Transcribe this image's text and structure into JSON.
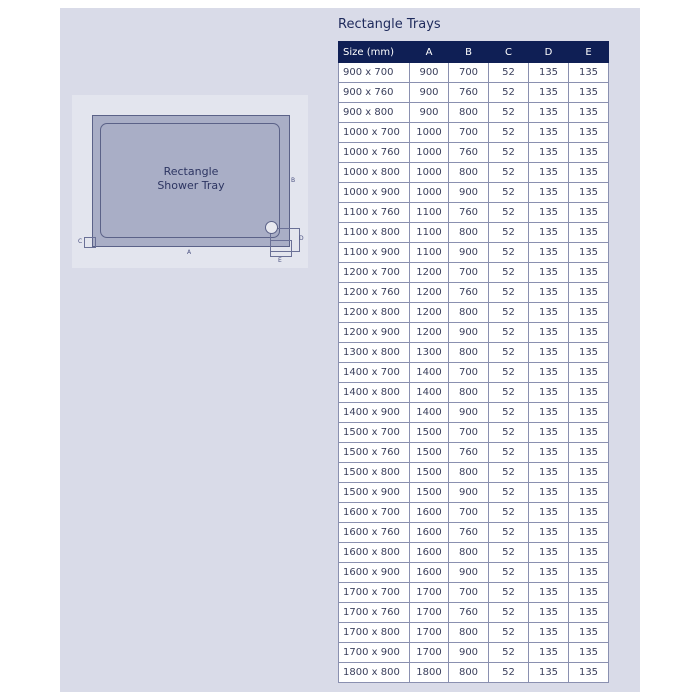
{
  "diagram": {
    "label_line1": "Rectangle",
    "label_line2": "Shower Tray",
    "dim_a": "A",
    "dim_b": "B",
    "dim_c": "C",
    "dim_d": "D",
    "dim_e": "E"
  },
  "table": {
    "title": "Rectangle Trays",
    "headers": [
      "Size (mm)",
      "A",
      "B",
      "C",
      "D",
      "E"
    ],
    "rows": [
      [
        "900 x 700",
        "900",
        "700",
        "52",
        "135",
        "135"
      ],
      [
        "900 x 760",
        "900",
        "760",
        "52",
        "135",
        "135"
      ],
      [
        "900 x 800",
        "900",
        "800",
        "52",
        "135",
        "135"
      ],
      [
        "1000 x 700",
        "1000",
        "700",
        "52",
        "135",
        "135"
      ],
      [
        "1000 x 760",
        "1000",
        "760",
        "52",
        "135",
        "135"
      ],
      [
        "1000 x 800",
        "1000",
        "800",
        "52",
        "135",
        "135"
      ],
      [
        "1000 x 900",
        "1000",
        "900",
        "52",
        "135",
        "135"
      ],
      [
        "1100 x 760",
        "1100",
        "760",
        "52",
        "135",
        "135"
      ],
      [
        "1100 x 800",
        "1100",
        "800",
        "52",
        "135",
        "135"
      ],
      [
        "1100 x 900",
        "1100",
        "900",
        "52",
        "135",
        "135"
      ],
      [
        "1200 x 700",
        "1200",
        "700",
        "52",
        "135",
        "135"
      ],
      [
        "1200 x 760",
        "1200",
        "760",
        "52",
        "135",
        "135"
      ],
      [
        "1200 x 800",
        "1200",
        "800",
        "52",
        "135",
        "135"
      ],
      [
        "1200 x 900",
        "1200",
        "900",
        "52",
        "135",
        "135"
      ],
      [
        "1300 x 800",
        "1300",
        "800",
        "52",
        "135",
        "135"
      ],
      [
        "1400 x 700",
        "1400",
        "700",
        "52",
        "135",
        "135"
      ],
      [
        "1400 x 800",
        "1400",
        "800",
        "52",
        "135",
        "135"
      ],
      [
        "1400 x 900",
        "1400",
        "900",
        "52",
        "135",
        "135"
      ],
      [
        "1500 x 700",
        "1500",
        "700",
        "52",
        "135",
        "135"
      ],
      [
        "1500 x 760",
        "1500",
        "760",
        "52",
        "135",
        "135"
      ],
      [
        "1500 x 800",
        "1500",
        "800",
        "52",
        "135",
        "135"
      ],
      [
        "1500 x 900",
        "1500",
        "900",
        "52",
        "135",
        "135"
      ],
      [
        "1600 x 700",
        "1600",
        "700",
        "52",
        "135",
        "135"
      ],
      [
        "1600 x 760",
        "1600",
        "760",
        "52",
        "135",
        "135"
      ],
      [
        "1600 x 800",
        "1600",
        "800",
        "52",
        "135",
        "135"
      ],
      [
        "1600 x 900",
        "1600",
        "900",
        "52",
        "135",
        "135"
      ],
      [
        "1700 x 700",
        "1700",
        "700",
        "52",
        "135",
        "135"
      ],
      [
        "1700 x 760",
        "1700",
        "760",
        "52",
        "135",
        "135"
      ],
      [
        "1700 x 800",
        "1700",
        "800",
        "52",
        "135",
        "135"
      ],
      [
        "1700 x 900",
        "1700",
        "900",
        "52",
        "135",
        "135"
      ],
      [
        "1800 x 800",
        "1800",
        "800",
        "52",
        "135",
        "135"
      ]
    ]
  }
}
